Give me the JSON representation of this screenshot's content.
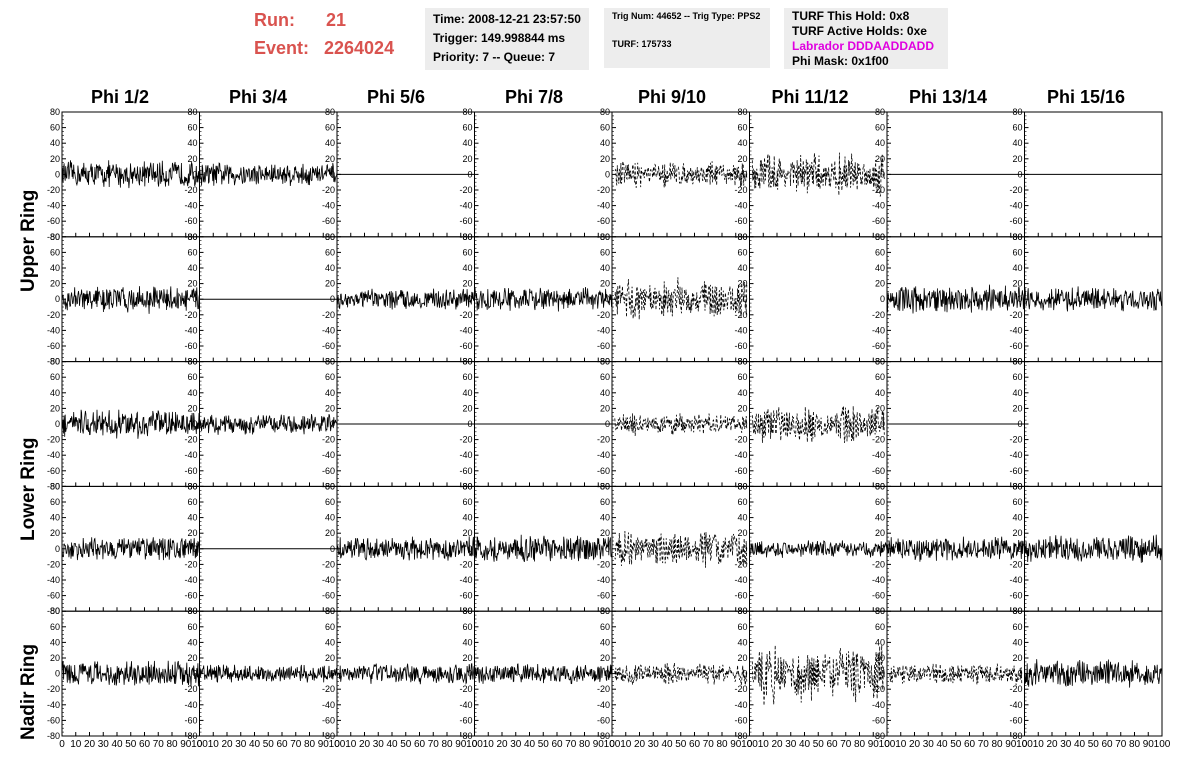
{
  "header": {
    "run_label": "Run:",
    "run_value": "21",
    "event_label": "Event:",
    "event_value": "2264024"
  },
  "info_time": {
    "time": "Time: 2008-12-21 23:57:50",
    "trigger": "Trigger: 149.998844 ms",
    "priority": "Priority: 7 -- Queue: 7"
  },
  "info_trig": {
    "trig": "Trig Num: 44652 -- Trig Type: PPS2",
    "turf": "TURF: 175733"
  },
  "info_turf": {
    "hold": "TURF This Hold: 0x8",
    "active": "TURF Active Holds: 0xe",
    "labrador": "Labrador DDDAADDADD",
    "phimask": "Phi Mask: 0x1f00"
  },
  "colors": {
    "header_red": "#d9534f",
    "labrador_magenta": "#e000e0",
    "panel_grey": "#ededed"
  },
  "columns": [
    "Phi 1/2",
    "Phi 3/4",
    "Phi 5/6",
    "Phi 7/8",
    "Phi 9/10",
    "Phi 11/12",
    "Phi 13/14",
    "Phi 15/16"
  ],
  "ring_labels": [
    "Upper Ring",
    "Lower Ring",
    "Nadir Ring"
  ],
  "chart_data": {
    "type": "line",
    "grid": false,
    "xlim": [
      0,
      100
    ],
    "ylim": [
      -80,
      80
    ],
    "x_ticks": [
      0,
      10,
      20,
      30,
      40,
      50,
      60,
      70,
      80,
      90,
      100
    ],
    "x_tick_labels": [
      "0",
      "10",
      "20",
      "30",
      "40",
      "50",
      "60",
      "70",
      "80",
      "90",
      "100"
    ],
    "y_ticks": [
      -80,
      -60,
      -40,
      -20,
      0,
      20,
      40,
      60,
      80
    ],
    "y_tick_labels": [
      "-80",
      "-60",
      "-40",
      "-20",
      "0",
      "20",
      "40",
      "60",
      "80"
    ],
    "panel_rows": 5,
    "panel_cols": 8,
    "panels_style": [
      [
        "solid",
        "solid",
        "flat",
        "none",
        "dashed",
        "dashed",
        "flat",
        "flat"
      ],
      [
        "solid",
        "flat",
        "solid",
        "solid",
        "dashed",
        "none",
        "solid",
        "solid"
      ],
      [
        "solid",
        "solid",
        "flat",
        "flat",
        "dashed",
        "dashed",
        "flat",
        "none"
      ],
      [
        "solid",
        "flat",
        "solid",
        "solid",
        "dashed",
        "solid",
        "solid",
        "solid"
      ],
      [
        "solid",
        "solid",
        "solid",
        "solid",
        "dashed",
        "dashed",
        "dashed",
        "solid"
      ]
    ],
    "panels_amplitude": [
      [
        16,
        14,
        0,
        0,
        14,
        22,
        0,
        0
      ],
      [
        16,
        0,
        12,
        14,
        22,
        0,
        16,
        14
      ],
      [
        16,
        12,
        0,
        0,
        12,
        20,
        0,
        0
      ],
      [
        14,
        0,
        14,
        16,
        20,
        10,
        14,
        16
      ],
      [
        16,
        10,
        12,
        12,
        12,
        30,
        12,
        16
      ]
    ]
  }
}
